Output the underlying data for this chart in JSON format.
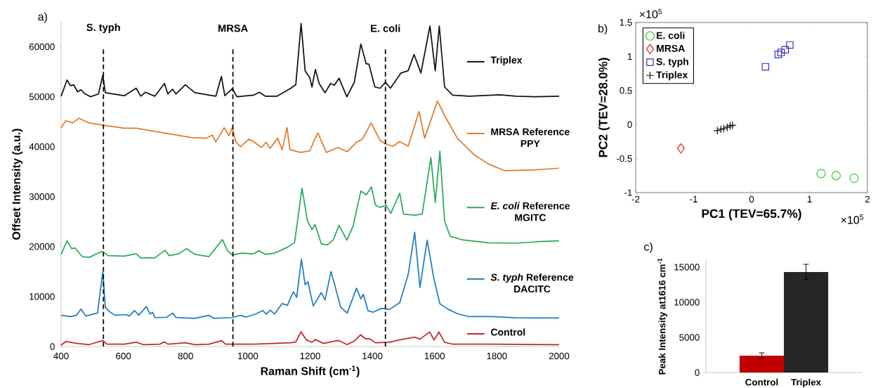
{
  "chart_data": [
    {
      "type": "line",
      "title": "a)",
      "xlabel": "Raman Shift (cm$^{-1}$)",
      "ylabel": "Offset Intensity (a.u.)",
      "xlim": [
        400,
        2000
      ],
      "ylim": [
        0,
        65000
      ],
      "xticks": [
        400,
        600,
        800,
        1000,
        1200,
        1400,
        1600,
        1800,
        2000
      ],
      "yticks": [
        0,
        10000,
        20000,
        30000,
        40000,
        50000,
        60000
      ],
      "legend": "right",
      "ref_lines": [
        {
          "axis": "x",
          "value": 536,
          "label": "S. typh",
          "color": "#000000",
          "line_style": "dashed"
        },
        {
          "axis": "x",
          "value": 952,
          "label": "MRSA",
          "color": "#000000",
          "line_style": "dashed"
        },
        {
          "axis": "x",
          "value": 1442,
          "label": "E. coli",
          "color": "#000000",
          "line_style": "dashed"
        }
      ],
      "series": [
        {
          "name": "Triplex",
          "color": "#111111",
          "x": [
            400,
            419,
            430,
            440,
            453,
            464,
            475,
            494,
            520,
            534,
            542,
            566,
            603,
            641,
            656,
            671,
            701,
            732,
            743,
            758,
            769,
            799,
            830,
            897,
            915,
            926,
            950,
            965,
            1018,
            1037,
            1056,
            1093,
            1138,
            1154,
            1171,
            1184,
            1199,
            1206,
            1217,
            1229,
            1248,
            1266,
            1278,
            1293,
            1318,
            1342,
            1363,
            1380,
            1389,
            1408,
            1425,
            1442,
            1458,
            1492,
            1515,
            1534,
            1556,
            1585,
            1602,
            1615,
            1632,
            1658,
            1711,
            1809,
            1862,
            1922,
            2000
          ],
          "values": [
            50100,
            53350,
            52200,
            52400,
            51000,
            51400,
            50650,
            50000,
            50550,
            54300,
            50800,
            50550,
            50200,
            51700,
            50100,
            50900,
            50100,
            52650,
            50550,
            51500,
            50550,
            52400,
            50800,
            50100,
            54050,
            50200,
            51600,
            50000,
            50300,
            50900,
            50100,
            50100,
            51700,
            52400,
            64650,
            55200,
            53800,
            51950,
            55450,
            52650,
            50800,
            52650,
            52300,
            53700,
            50000,
            52900,
            60550,
            56600,
            56500,
            51950,
            51700,
            52900,
            51700,
            54750,
            55200,
            58450,
            54750,
            64150,
            55200,
            64150,
            51950,
            50300,
            50100,
            50400,
            50100,
            50000,
            50100
          ]
        },
        {
          "name": "MRSA Reference PPY",
          "color": "#e07b2c",
          "x": [
            400,
            415,
            438,
            457,
            490,
            536,
            603,
            641,
            717,
            822,
            867,
            886,
            897,
            924,
            939,
            950,
            961,
            976,
            1003,
            1018,
            1044,
            1059,
            1071,
            1096,
            1110,
            1126,
            1135,
            1169,
            1199,
            1210,
            1225,
            1252,
            1289,
            1319,
            1349,
            1368,
            1396,
            1425,
            1442,
            1466,
            1488,
            1515,
            1550,
            1568,
            1609,
            1635,
            1673,
            1726,
            1771,
            1824,
            1922,
            2000
          ],
          "values": [
            43800,
            45200,
            44750,
            45700,
            44750,
            44300,
            43700,
            43700,
            42900,
            41800,
            41700,
            42300,
            40950,
            43800,
            42200,
            43800,
            41000,
            40000,
            41500,
            41000,
            39850,
            40900,
            39650,
            41700,
            39400,
            43800,
            39400,
            38850,
            39150,
            40800,
            42750,
            38850,
            39850,
            39000,
            40900,
            41500,
            44750,
            41250,
            40550,
            40100,
            41000,
            40100,
            47050,
            41700,
            49150,
            45900,
            41700,
            38450,
            36600,
            35200,
            35350,
            35700
          ]
        },
        {
          "name": "*E. coli* Reference MGITC",
          "color": "#2aa85a",
          "x": [
            400,
            419,
            434,
            445,
            468,
            490,
            532,
            551,
            603,
            641,
            656,
            701,
            734,
            747,
            777,
            803,
            830,
            875,
            918,
            935,
            950,
            980,
            1018,
            1035,
            1056,
            1086,
            1127,
            1150,
            1174,
            1191,
            1206,
            1216,
            1236,
            1255,
            1274,
            1293,
            1318,
            1338,
            1363,
            1380,
            1397,
            1410,
            1425,
            1444,
            1459,
            1488,
            1500,
            1537,
            1560,
            1588,
            1602,
            1617,
            1632,
            1650,
            1688,
            1771,
            1862,
            1937,
            2000
          ],
          "values": [
            18450,
            21170,
            19600,
            19700,
            18000,
            17850,
            19050,
            18200,
            18100,
            18600,
            17750,
            17750,
            19250,
            18200,
            18550,
            19600,
            18450,
            18000,
            21400,
            19150,
            18300,
            18700,
            18550,
            19150,
            18450,
            18700,
            19850,
            20800,
            31700,
            25250,
            23400,
            24400,
            20550,
            20350,
            21300,
            24250,
            21300,
            24100,
            31150,
            30350,
            31950,
            28300,
            27850,
            28300,
            26650,
            30700,
            26500,
            26300,
            26500,
            37800,
            28840,
            39100,
            25110,
            22080,
            21380,
            20770,
            20680,
            21000,
            21150
          ]
        },
        {
          "name": "*S. typh* Reference DACITC",
          "color": "#1f7dc0",
          "x": [
            400,
            430,
            449,
            464,
            479,
            517,
            534,
            542,
            554,
            573,
            607,
            619,
            636,
            649,
            674,
            686,
            694,
            701,
            739,
            758,
            769,
            830,
            875,
            890,
            950,
            976,
            995,
            1025,
            1048,
            1059,
            1072,
            1086,
            1110,
            1127,
            1146,
            1157,
            1172,
            1184,
            1193,
            1210,
            1236,
            1248,
            1267,
            1281,
            1298,
            1319,
            1349,
            1363,
            1371,
            1386,
            1402,
            1429,
            1455,
            1488,
            1515,
            1536,
            1553,
            1576,
            1598,
            1617,
            1643,
            1673,
            1711,
            1786,
            1862,
            2000
          ],
          "values": [
            6250,
            6000,
            6250,
            7500,
            6100,
            6700,
            15000,
            7900,
            7050,
            6250,
            6400,
            6100,
            7200,
            6250,
            8000,
            6500,
            6850,
            5800,
            5850,
            6700,
            5800,
            5650,
            6250,
            5650,
            5800,
            6250,
            5900,
            6500,
            7200,
            6500,
            7300,
            6500,
            8600,
            8250,
            10950,
            9850,
            17500,
            12350,
            12950,
            8100,
            10800,
            9300,
            15000,
            11900,
            7900,
            6700,
            11650,
            9550,
            10450,
            7200,
            6850,
            7650,
            7400,
            8780,
            14380,
            22870,
            11810,
            21290,
            13450,
            8540,
            7470,
            6580,
            5980,
            5980,
            5740,
            5700
          ]
        },
        {
          "name": "Control",
          "color": "#c0282d",
          "x": [
            400,
            415,
            453,
            490,
            534,
            547,
            603,
            641,
            664,
            717,
            732,
            743,
            799,
            830,
            875,
            916,
            928,
            1018,
            1138,
            1154,
            1171,
            1188,
            1206,
            1217,
            1243,
            1267,
            1291,
            1319,
            1342,
            1362,
            1378,
            1391,
            1410,
            1455,
            1492,
            1536,
            1553,
            1584,
            1598,
            1614,
            1632,
            1658,
            1786,
            2000
          ],
          "values": [
            280,
            990,
            610,
            380,
            1220,
            470,
            470,
            850,
            380,
            470,
            940,
            470,
            750,
            380,
            470,
            1170,
            470,
            470,
            750,
            940,
            2960,
            1310,
            850,
            1410,
            610,
            940,
            1220,
            380,
            1080,
            2350,
            1550,
            1550,
            750,
            850,
            1400,
            1870,
            1490,
            2900,
            1310,
            2900,
            840,
            470,
            470,
            380
          ]
        }
      ]
    },
    {
      "type": "scatter",
      "title": "b)",
      "xlabel": "PC1 (TEV=65.7%)",
      "ylabel": "PC2 (TEV=28.0%)",
      "xlim": [
        -2,
        2
      ],
      "ylim": [
        -1,
        1.5
      ],
      "xticks": [
        -2,
        -1,
        0,
        1,
        2
      ],
      "yticks": [
        -1,
        -0.5,
        0,
        0.5,
        1,
        1.5
      ],
      "legend": "top left",
      "annotations": [
        "×10$^{5}$",
        "×10$^{5}$"
      ],
      "series": [
        {
          "name": "E. coli",
          "color": "#33cc33",
          "marker": "circle",
          "x": [
            1.2,
            1.46,
            1.77
          ],
          "values": [
            -0.72,
            -0.75,
            -0.79
          ]
        },
        {
          "name": "MRSA",
          "color": "#cc2222",
          "marker": "diamond",
          "x": [
            -1.22
          ],
          "values": [
            -0.35
          ]
        },
        {
          "name": "S. typh",
          "color": "#3333bb",
          "marker": "square",
          "x": [
            0.24,
            0.46,
            0.51,
            0.58,
            0.66
          ],
          "values": [
            0.85,
            1.03,
            1.06,
            1.1,
            1.17
          ]
        },
        {
          "name": "Triplex",
          "color": "#111111",
          "marker": "cross",
          "x": [
            -0.59,
            -0.53,
            -0.48,
            -0.42,
            -0.37,
            -0.33
          ],
          "values": [
            -0.09,
            -0.07,
            -0.06,
            -0.04,
            -0.02,
            -0.01
          ]
        }
      ]
    },
    {
      "type": "bar",
      "title": "c)",
      "ylabel": "Peak Intensity at1616 cm$^{-1}$",
      "categories": [
        "Control",
        "Triplex"
      ],
      "values": [
        2400,
        14300
      ],
      "errors": [
        400,
        1100
      ],
      "colors": [
        "#c00000",
        "#262626"
      ],
      "ylim": [
        0,
        16000
      ],
      "yticks": [
        0,
        5000,
        10000,
        15000
      ]
    }
  ]
}
